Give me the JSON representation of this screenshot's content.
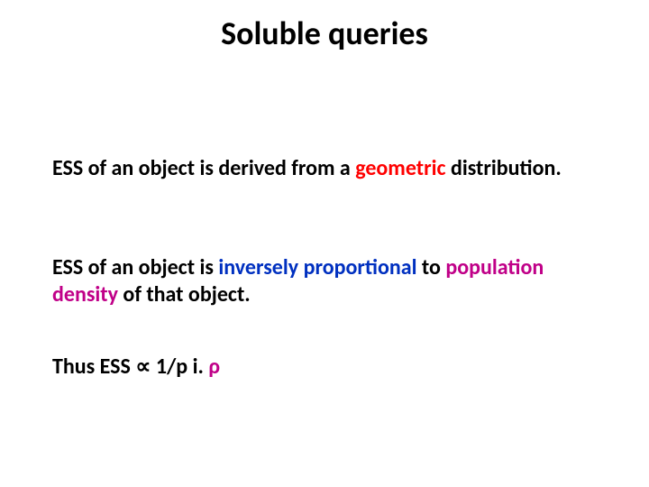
{
  "slide": {
    "title": "Soluble queries",
    "title_fontsize": 36,
    "title_color": "#000000",
    "body_fontsize": 24,
    "background_color": "#ffffff",
    "paragraphs": {
      "p1": {
        "lead": "ESS of an object is derived from a ",
        "lead_color": "#000000",
        "em1": "geometric",
        "em1_color": "#ff0000",
        "tail": " distribution.",
        "tail_color": "#000000"
      },
      "p2": {
        "lead": "ESS of an object is ",
        "lead_color": "#000000",
        "em1": "inversely proportional",
        "em1_color": "#0030c0",
        "mid": " to ",
        "mid_color": "#000000",
        "em2": "population density",
        "em2_color": "#c00088",
        "tail": " of that object.",
        "tail_color": "#000000"
      },
      "p3": {
        "lead": "Thus ESS ",
        "lead_color": "#000000",
        "prop": "∝",
        "prop_color": "#000000",
        "mid": " 1/p i. ",
        "mid_color": "#000000",
        "rho": "ρ",
        "rho_color": "#c00088"
      }
    }
  }
}
